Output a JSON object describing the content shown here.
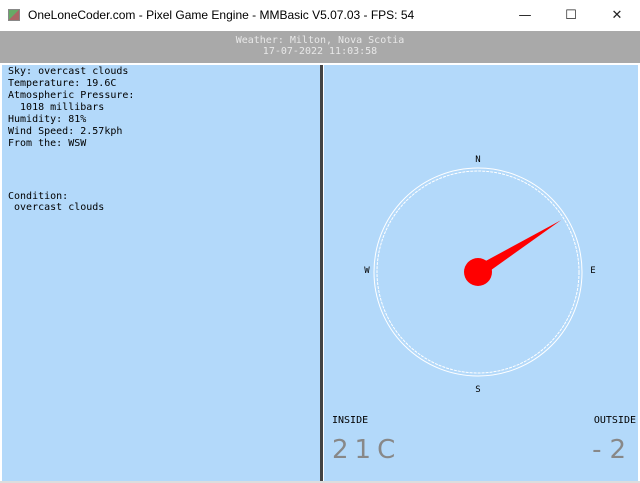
{
  "window": {
    "title": "OneLoneCoder.com - Pixel Game Engine - MMBasic V5.07.03 - FPS: 54",
    "minimize": "—",
    "maximize": "☐",
    "close": "✕"
  },
  "header": {
    "location": "Weather: Milton, Nova Scotia",
    "datetime": "17-07-2022 11:03:58"
  },
  "weather": {
    "sky": "Sky: overcast clouds",
    "temperature": "Temperature: 19.6C",
    "pressure_label": "Atmospheric Pressure:",
    "pressure_value": "  1018 millibars",
    "humidity": "Humidity: 81%",
    "wind_speed": "Wind Speed: 2.57kph",
    "wind_from": "From the: WSW",
    "condition_label": "Condition:",
    "condition_value": " overcast clouds"
  },
  "compass": {
    "n": "N",
    "e": "E",
    "s": "S",
    "w": "W",
    "needle_bearing_deg": 58,
    "needle_color": "#ff0000"
  },
  "temps": {
    "inside_label": "INSIDE",
    "inside_value": "21C",
    "outside_label": "OUTSIDE",
    "outside_value": "-2"
  },
  "colors": {
    "panel": "#b3d9fa",
    "header": "#a9a9a9"
  }
}
